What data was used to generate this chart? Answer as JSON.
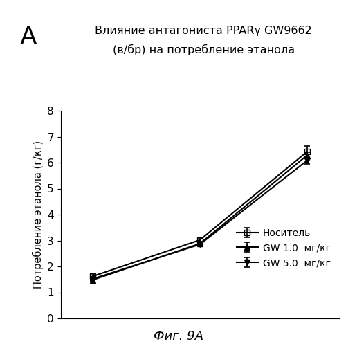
{
  "title_line1": "Влияние антагониста PPARγ GW9662",
  "title_line2": "(в/бр) на потребление этанола",
  "panel_label": "A",
  "ylabel": "Потребление этанола (г/кг)",
  "caption": "Фиг. 9А",
  "x": [
    1,
    2,
    3
  ],
  "series": [
    {
      "label": "Носитель",
      "y": [
        1.62,
        3.02,
        6.42
      ],
      "yerr": [
        0.05,
        0.06,
        0.22
      ],
      "color": "#000000",
      "marker": "s",
      "markersize": 6,
      "fillstyle": "none",
      "linestyle": "-",
      "linewidth": 1.5
    },
    {
      "label": "GW 1.0  мг/кг",
      "y": [
        1.48,
        2.88,
        6.28
      ],
      "yerr": [
        0.05,
        0.05,
        0.12
      ],
      "color": "#000000",
      "marker": "^",
      "markersize": 6,
      "fillstyle": "full",
      "linestyle": "-",
      "linewidth": 1.5
    },
    {
      "label": "GW 5.0  мг/кг",
      "y": [
        1.52,
        2.85,
        6.08
      ],
      "yerr": [
        0.05,
        0.05,
        0.12
      ],
      "color": "#000000",
      "marker": "v",
      "markersize": 6,
      "fillstyle": "full",
      "linestyle": "-",
      "linewidth": 1.5
    }
  ],
  "ylim": [
    0,
    8
  ],
  "yticks": [
    0,
    1,
    2,
    3,
    4,
    5,
    6,
    7,
    8
  ],
  "xlim": [
    0.7,
    3.3
  ],
  "background_color": "#ffffff"
}
